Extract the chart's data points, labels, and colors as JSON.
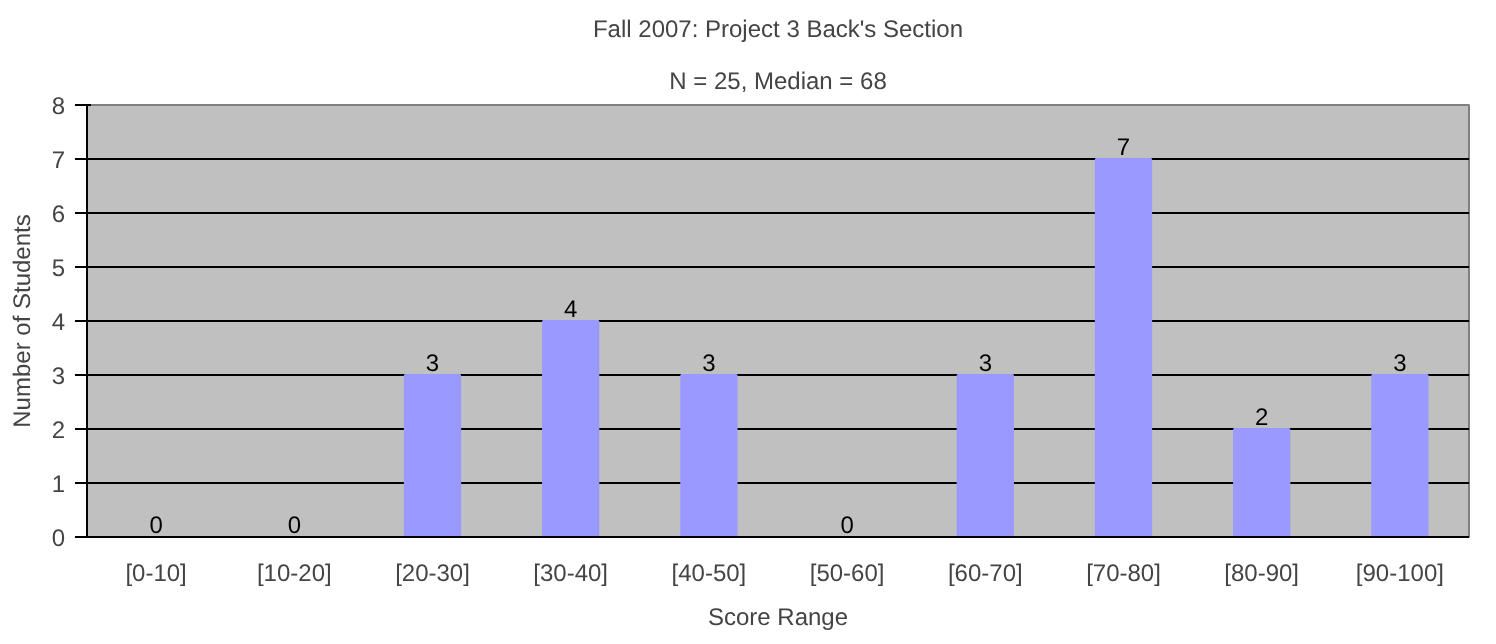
{
  "chart_data": {
    "type": "bar",
    "title": "Fall 2007: Project 3 Back's Section",
    "subtitle": "N = 25, Median = 68",
    "xlabel": "Score Range",
    "ylabel": "Number of Students",
    "categories": [
      "[0-10]",
      "[10-20]",
      "[20-30]",
      "[30-40]",
      "[40-50]",
      "[50-60]",
      "[60-70]",
      "[70-80]",
      "[80-90]",
      "[90-100]"
    ],
    "values": [
      0,
      0,
      3,
      4,
      3,
      0,
      3,
      7,
      2,
      3
    ],
    "color": "#9999ff",
    "ylim": [
      0,
      8
    ],
    "yticks": [
      0,
      1,
      2,
      3,
      4,
      5,
      6,
      7,
      8
    ],
    "grid": "y",
    "data_labels": true
  }
}
